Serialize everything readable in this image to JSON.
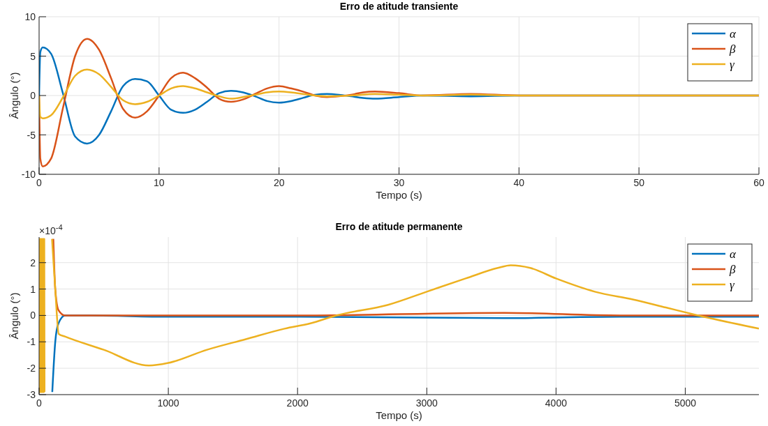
{
  "chart_data": [
    {
      "type": "line",
      "title": "Erro de atitude transiente",
      "xlabel": "Tempo (s)",
      "ylabel": "Ângulo (°)",
      "xlim": [
        0,
        60
      ],
      "ylim": [
        -10,
        10
      ],
      "xticks": [
        0,
        10,
        20,
        30,
        40,
        50,
        60
      ],
      "yticks": [
        -10,
        -5,
        0,
        5,
        10
      ],
      "grid": true,
      "legend": "top right",
      "series": [
        {
          "name": "α",
          "color": "#0072bd",
          "x": [
            0,
            0.1,
            0.3,
            1,
            2,
            3,
            4,
            5,
            6,
            7,
            8,
            9,
            10,
            11,
            12,
            13,
            14,
            15,
            16,
            17,
            18,
            19,
            20,
            21,
            22,
            23,
            24,
            25,
            26,
            27,
            28,
            30,
            32,
            36,
            40,
            60
          ],
          "values": [
            0,
            5.5,
            6.1,
            5.3,
            0.2,
            -5.2,
            -6.1,
            -5.0,
            -2.0,
            1.2,
            2.1,
            1.8,
            0,
            -1.8,
            -2.2,
            -1.8,
            -0.8,
            0.3,
            0.6,
            0.4,
            -0.1,
            -0.7,
            -0.9,
            -0.7,
            -0.3,
            0.1,
            0.2,
            0.1,
            -0.1,
            -0.3,
            -0.4,
            -0.2,
            0,
            -0.1,
            0,
            0
          ]
        },
        {
          "name": "β",
          "color": "#d95319",
          "x": [
            0,
            0.1,
            0.3,
            1,
            2,
            3,
            4,
            5,
            6,
            7,
            8,
            9,
            10,
            11,
            12,
            13,
            14,
            15,
            16,
            17,
            18,
            19,
            20,
            21,
            22,
            23,
            24,
            25,
            26,
            27,
            28,
            30,
            32,
            36,
            40,
            60
          ],
          "values": [
            0,
            -8,
            -9,
            -8,
            -1.5,
            5,
            7.2,
            5.8,
            2.2,
            -1.7,
            -2.8,
            -2.0,
            0,
            2.2,
            2.9,
            2.2,
            1.0,
            -0.4,
            -0.8,
            -0.5,
            0.2,
            0.9,
            1.2,
            0.9,
            0.5,
            0,
            -0.2,
            -0.1,
            0.1,
            0.4,
            0.5,
            0.3,
            0,
            0.2,
            0,
            0
          ]
        },
        {
          "name": "γ",
          "color": "#edb120",
          "x": [
            0,
            0.1,
            0.3,
            1,
            2,
            3,
            4,
            5,
            6,
            7,
            8,
            9,
            10,
            11,
            12,
            13,
            14,
            15,
            16,
            17,
            18,
            19,
            20,
            21,
            22,
            23,
            24,
            26,
            28,
            30,
            32,
            36,
            40,
            60
          ],
          "values": [
            0,
            -2.7,
            -2.9,
            -2.5,
            -0.2,
            2.5,
            3.3,
            2.7,
            1.1,
            -0.6,
            -1.1,
            -0.8,
            0,
            0.9,
            1.2,
            0.9,
            0.4,
            -0.1,
            -0.4,
            -0.2,
            0.1,
            0.4,
            0.5,
            0.4,
            0.2,
            0,
            -0.1,
            0,
            0.2,
            0.1,
            0,
            0.1,
            0,
            0
          ]
        }
      ]
    },
    {
      "type": "line",
      "title": "Erro de atitude permanente",
      "xlabel": "Tempo (s)",
      "ylabel": "Ângulo (°)",
      "annotations": [
        "×10$^{-4}$"
      ],
      "xlim": [
        0,
        5570
      ],
      "ylim": [
        -3,
        2.97
      ],
      "xticks": [
        0,
        1000,
        2000,
        3000,
        4000,
        5000
      ],
      "yticks": [
        -3,
        -2,
        -1,
        0,
        1,
        2
      ],
      "grid": true,
      "legend": "top right",
      "series": [
        {
          "name": "α",
          "color": "#0072bd",
          "x": [
            102,
            125,
            150,
            200,
            400,
            1000,
            2000,
            3600,
            4500,
            5570
          ],
          "values": [
            -2.9,
            -1,
            -0.3,
            0,
            0,
            -0.05,
            -0.05,
            -0.1,
            -0.05,
            -0.05
          ]
        },
        {
          "name": "β",
          "color": "#d95319",
          "x": [
            110,
            125,
            150,
            200,
            1000,
            2000,
            3600,
            4500,
            5570
          ],
          "values": [
            2.9,
            1,
            0.2,
            0,
            0,
            0,
            0.1,
            0,
            0
          ]
        },
        {
          "name": "γ",
          "color": "#edb120",
          "x": [
            0,
            2,
            4,
            6,
            8,
            10,
            12,
            14,
            16,
            18,
            20,
            22,
            24,
            26,
            28,
            30,
            32,
            34,
            36,
            38,
            40,
            42,
            85,
            100,
            125,
            152,
            200,
            500,
            850,
            1000,
            1300,
            1600,
            1900,
            2100,
            2300,
            2700,
            3000,
            3300,
            3550,
            3650,
            3800,
            4000,
            4300,
            4600,
            4850,
            5100,
            5570
          ],
          "values": [
            2.9,
            -2.9,
            2.9,
            -2.9,
            2.9,
            -2.9,
            2.9,
            -2.9,
            2.9,
            -2.9,
            2.9,
            -2.9,
            2.9,
            -2.9,
            2.9,
            -2.9,
            2.9,
            -2.9,
            2.9,
            -2.9,
            2.9,
            -2.9,
            null,
            2.9,
            1,
            -0.7,
            -0.8,
            -1.3,
            -1.9,
            -1.8,
            -1.3,
            -0.9,
            -0.5,
            -0.3,
            0,
            0.4,
            0.9,
            1.4,
            1.8,
            1.9,
            1.8,
            1.4,
            0.9,
            0.6,
            0.3,
            0,
            -0.5
          ]
        }
      ]
    }
  ]
}
